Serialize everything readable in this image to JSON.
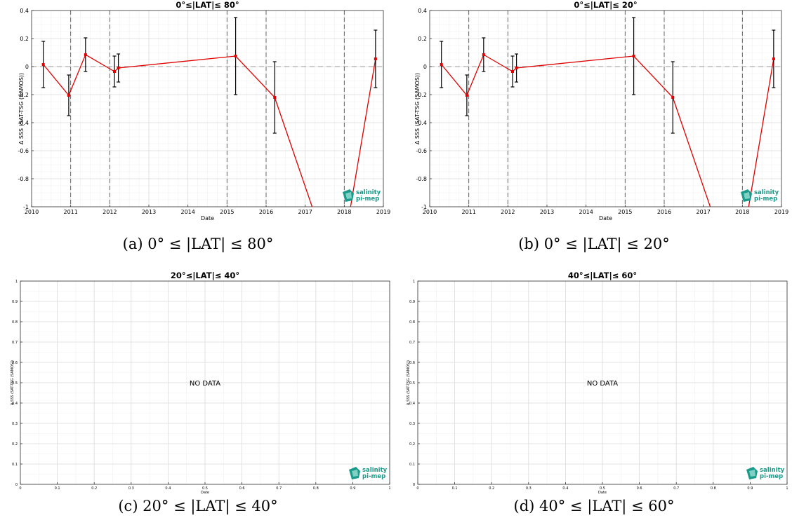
{
  "logo": {
    "line1": "salinity",
    "line2": "pi-mep",
    "color": "#1a9a8a"
  },
  "panels": [
    {
      "caption": "(a) 0° ≤ |LAT| ≤ 80°",
      "title": "0°≤|LAT|≤ 80°"
    },
    {
      "caption": "(b) 0° ≤ |LAT| ≤ 20°",
      "title": "0°≤|LAT|≤ 20°"
    },
    {
      "caption": "(c) 20° ≤ |LAT| ≤ 40°",
      "title": "20°≤|LAT|≤ 40°",
      "message": "NO DATA"
    },
    {
      "caption": "(d) 40° ≤ |LAT| ≤ 60°",
      "title": "40°≤|LAT|≤ 60°",
      "message": "NO DATA"
    }
  ],
  "chart_data": [
    {
      "type": "line",
      "title": "0°≤|LAT|≤ 80°",
      "xlabel": "Date",
      "ylabel": "Δ SSS (SAT-TSG (SAMOS))",
      "xlim": [
        2010,
        2019
      ],
      "ylim": [
        -1,
        0.4
      ],
      "x_ticks": [
        "2010",
        "2011",
        "2012",
        "2013",
        "2014",
        "2015",
        "2016",
        "2017",
        "2018",
        "2019"
      ],
      "y_ticks": [
        "0.4",
        "0.2",
        "0",
        "-0.2",
        "-0.4",
        "-0.6",
        "-0.8",
        "-1"
      ],
      "grid": true,
      "series": [
        {
          "color": "#e00000",
          "x": [
            2010.3,
            2010.95,
            2011.38,
            2012.12,
            2012.22,
            2015.22,
            2016.22,
            2017.3,
            2018.1,
            2018.8
          ],
          "y": [
            0.015,
            -0.205,
            0.085,
            -0.035,
            -0.01,
            0.075,
            -0.22,
            -1.1,
            -1.1,
            0.055
          ],
          "error": [
            0.165,
            0.145,
            0.12,
            0.11,
            0.1,
            0.275,
            0.255,
            null,
            null,
            0.205
          ]
        }
      ],
      "vlines": [
        2011.0,
        2012.0,
        2015.0,
        2016.0,
        2018.0
      ]
    },
    {
      "type": "line",
      "title": "0°≤|LAT|≤ 20°",
      "xlabel": "Date",
      "ylabel": "Δ SSS (SAT-TSG (SAMOS))",
      "xlim": [
        2010,
        2019
      ],
      "ylim": [
        -1,
        0.4
      ],
      "x_ticks": [
        "2010",
        "2011",
        "2012",
        "2013",
        "2014",
        "2015",
        "2016",
        "2017",
        "2018",
        "2019"
      ],
      "y_ticks": [
        "0.4",
        "0.2",
        "0",
        "-0.2",
        "-0.4",
        "-0.6",
        "-0.8",
        "-1"
      ],
      "grid": true,
      "series": [
        {
          "color": "#e00000",
          "x": [
            2010.3,
            2010.95,
            2011.38,
            2012.12,
            2012.22,
            2015.22,
            2016.22,
            2017.3,
            2018.1,
            2018.8
          ],
          "y": [
            0.015,
            -0.205,
            0.085,
            -0.035,
            -0.01,
            0.075,
            -0.22,
            -1.1,
            -1.1,
            0.055
          ],
          "error": [
            0.165,
            0.145,
            0.12,
            0.11,
            0.1,
            0.275,
            0.255,
            null,
            null,
            0.205
          ]
        }
      ],
      "vlines": [
        2011.0,
        2012.0,
        2015.0,
        2016.0,
        2018.0
      ]
    },
    {
      "type": "line",
      "title": "20°≤|LAT|≤ 40°",
      "xlabel": "Date",
      "ylabel": "Δ SSS (SAT-TSG (SAMOS))",
      "xlim": [
        0,
        1
      ],
      "ylim": [
        0,
        1
      ],
      "x_ticks": [
        "0",
        "0.1",
        "0.2",
        "0.3",
        "0.4",
        "0.5",
        "0.6",
        "0.7",
        "0.8",
        "0.9",
        "1"
      ],
      "y_ticks": [
        "1",
        "0.9",
        "0.8",
        "0.7",
        "0.6",
        "0.5",
        "0.4",
        "0.3",
        "0.2",
        "0.1",
        "0"
      ],
      "grid": true,
      "series": []
    },
    {
      "type": "line",
      "title": "40°≤|LAT|≤ 60°",
      "xlabel": "Date",
      "ylabel": "Δ SSS (SAT-TSG (SAMOS))",
      "xlim": [
        0,
        1
      ],
      "ylim": [
        0,
        1
      ],
      "x_ticks": [
        "0",
        "0.1",
        "0.2",
        "0.3",
        "0.4",
        "0.5",
        "0.6",
        "0.7",
        "0.8",
        "0.9",
        "1"
      ],
      "y_ticks": [
        "1",
        "0.9",
        "0.8",
        "0.7",
        "0.6",
        "0.5",
        "0.4",
        "0.3",
        "0.2",
        "0.1",
        "0"
      ],
      "grid": true,
      "series": []
    }
  ]
}
